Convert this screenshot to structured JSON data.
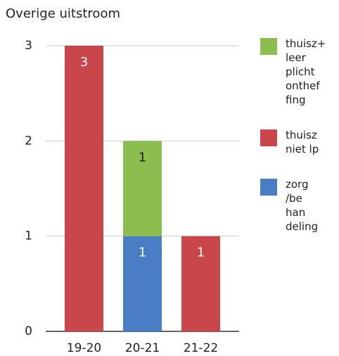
{
  "chart_data": {
    "type": "stacked_bar",
    "title": "Overige uitstroom",
    "categories": [
      "19-20",
      "20-21",
      "21-22"
    ],
    "series": [
      {
        "name": "zorg\n/be\nhan\ndeling",
        "color": "#4a7ec4",
        "values": [
          null,
          1,
          null
        ]
      },
      {
        "name": "thuisz\nniet lp",
        "color": "#c9474a",
        "values": [
          3,
          null,
          1
        ]
      },
      {
        "name": "thuisz+\nleer\nplicht\nonthef\nfing",
        "color": "#8cbd4f",
        "values": [
          null,
          1,
          null
        ]
      }
    ],
    "ylim": [
      0,
      3
    ],
    "yticks": [
      0,
      1,
      2,
      3
    ],
    "grid": true
  }
}
